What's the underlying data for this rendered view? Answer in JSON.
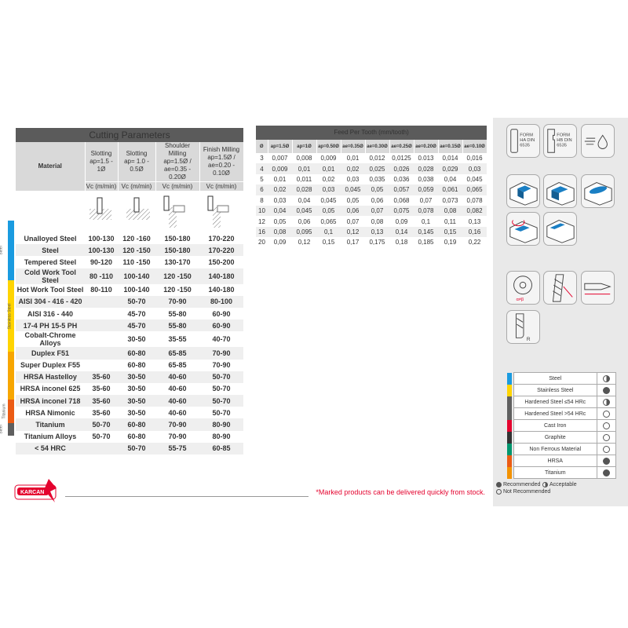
{
  "cutting": {
    "title": "Cutting Parameters",
    "material_header": "Material",
    "columns": [
      {
        "op": "Slotting",
        "param": "ap=1.5 - 1Ø",
        "unit": "Vc (m/min)"
      },
      {
        "op": "Slotting",
        "param": "ap= 1.0 - 0.5Ø",
        "unit": "Vc (m/min)"
      },
      {
        "op": "Shoulder Milling",
        "param": "ap=1.5Ø  /  ae=0.35 - 0.20Ø",
        "unit": "Vc (m/min)"
      },
      {
        "op": "Finish Milling",
        "param": "ap=1.5Ø  /  ae=0.20 - 0.10Ø",
        "unit": "Vc (m/min)"
      }
    ],
    "groups": [
      {
        "label": "Steel",
        "color": "#1a9be0",
        "rows": 5
      },
      {
        "label": "Stainless Steel",
        "color": "#ffd400",
        "rows": 6
      },
      {
        "label": "",
        "color": "#f7a600",
        "rows": 4
      },
      {
        "label": "Titanium",
        "color": "#eb5b14",
        "rows": 2
      },
      {
        "label": "Steel",
        "color": "#5f5f5f",
        "rows": 1
      }
    ],
    "rows": [
      [
        "Unalloyed Steel",
        "100-130",
        "120 -160",
        "150-180",
        "170-220"
      ],
      [
        "Steel",
        "100-130",
        "120 -150",
        "150-180",
        "170-220"
      ],
      [
        "Tempered Steel",
        "90-120",
        "110 -150",
        "130-170",
        "150-200"
      ],
      [
        "Cold Work Tool Steel",
        "80 -110",
        "100-140",
        "120 -150",
        "140-180"
      ],
      [
        "Hot Work Tool Steel",
        "80-110",
        "100-140",
        "120 -150",
        "140-180"
      ],
      [
        "AISI 304 - 416 - 420",
        "",
        "50-70",
        "70-90",
        "80-100"
      ],
      [
        "AISI 316 - 440",
        "",
        "45-70",
        "55-80",
        "60-90"
      ],
      [
        "17-4 PH 15-5 PH",
        "",
        "45-70",
        "55-80",
        "60-90"
      ],
      [
        "Cobalt-Chrome Alloys",
        "",
        "30-50",
        "35-55",
        "40-70"
      ],
      [
        "Duplex F51",
        "",
        "60-80",
        "65-85",
        "70-90"
      ],
      [
        "Super Duplex F55",
        "",
        "60-80",
        "65-85",
        "70-90"
      ],
      [
        "HRSA Hastelloy",
        "35-60",
        "30-50",
        "40-60",
        "50-70"
      ],
      [
        "HRSA inconel 625",
        "35-60",
        "30-50",
        "40-60",
        "50-70"
      ],
      [
        "HRSA inconel 718",
        "35-60",
        "30-50",
        "40-60",
        "50-70"
      ],
      [
        "HRSA Nimonic",
        "35-60",
        "30-50",
        "40-60",
        "50-70"
      ],
      [
        "Titanium",
        "50-70",
        "60-80",
        "70-90",
        "80-90"
      ],
      [
        "Titanium Alloys",
        "50-70",
        "60-80",
        "70-90",
        "80-90"
      ],
      [
        "< 54 HRC",
        "",
        "50-70",
        "55-75",
        "60-85"
      ]
    ]
  },
  "feed": {
    "title": "Feed Per Tooth (mm/tooth)",
    "headers": [
      "Ø",
      "ap=1.5Ø",
      "ap=1Ø",
      "ap=0.50Ø",
      "ae=0.35Ø",
      "ae=0.30Ø",
      "ae=0.25Ø",
      "ae=0.20Ø",
      "ae=0.15Ø",
      "ae=0.10Ø"
    ],
    "rows": [
      [
        "3",
        "0,007",
        "0,008",
        "0,009",
        "0,01",
        "0,012",
        "0,0125",
        "0.013",
        "0,014",
        "0,016"
      ],
      [
        "4",
        "0,009",
        "0,01",
        "0,01",
        "0,02",
        "0,025",
        "0,026",
        "0,028",
        "0,029",
        "0,03"
      ],
      [
        "5",
        "0,01",
        "0,011",
        "0,02",
        "0,03",
        "0,035",
        "0,036",
        "0,038",
        "0,04",
        "0,045"
      ],
      [
        "6",
        "0,02",
        "0,028",
        "0,03",
        "0,045",
        "0,05",
        "0,057",
        "0,059",
        "0,061",
        "0,065"
      ],
      [
        "8",
        "0,03",
        "0,04",
        "0,045",
        "0,05",
        "0,06",
        "0,068",
        "0,07",
        "0,073",
        "0,078"
      ],
      [
        "10",
        "0,04",
        "0,045",
        "0,05",
        "0,06",
        "0,07",
        "0,075",
        "0,078",
        "0,08",
        "0,082"
      ],
      [
        "12",
        "0,05",
        "0,06",
        "0,065",
        "0,07",
        "0,08",
        "0,09",
        "0,1",
        "0,11",
        "0,13"
      ],
      [
        "16",
        "0,08",
        "0,095",
        "0,1",
        "0,12",
        "0,13",
        "0,14",
        "0,145",
        "0,15",
        "0,16"
      ],
      [
        "20",
        "0,09",
        "0,12",
        "0,15",
        "0,17",
        "0,175",
        "0,18",
        "0,185",
        "0,19",
        "0,22"
      ]
    ]
  },
  "icons": {
    "form_ha": "FORM HA DIN 6535",
    "form_hb": "FORM HB DIN 6535",
    "coolant": "air-and-coolant-icon"
  },
  "legend": {
    "items": [
      {
        "label": "Steel",
        "color": "#1a9be0",
        "rating": "acceptable"
      },
      {
        "label": "Stainless Steel",
        "color": "#ffd400",
        "rating": "recommended"
      },
      {
        "label": "Hardened Steel ≤54 HRc",
        "color": "#5f5f5f",
        "rating": "acceptable"
      },
      {
        "label": "Hardened Steel >54 HRc",
        "color": "#5f5f5f",
        "rating": "not-recommended"
      },
      {
        "label": "Cast Iron",
        "color": "#e4032e",
        "rating": "not-recommended"
      },
      {
        "label": "Graphite",
        "color": "#333333",
        "rating": "not-recommended"
      },
      {
        "label": "Non Ferrous Material",
        "color": "#00966e",
        "rating": "not-recommended"
      },
      {
        "label": "HRSA",
        "color": "#eb5b14",
        "rating": "recommended"
      },
      {
        "label": "Titanium",
        "color": "#f39200",
        "rating": "recommended"
      }
    ],
    "key": {
      "recommended": "Recommended",
      "acceptable": "Acceptable",
      "not_recommended": "Not Recommended"
    }
  },
  "footer": {
    "logo": "KARCAN",
    "note": "*Marked products can be delivered quickly from stock.",
    "note_color": "#e4032e"
  }
}
